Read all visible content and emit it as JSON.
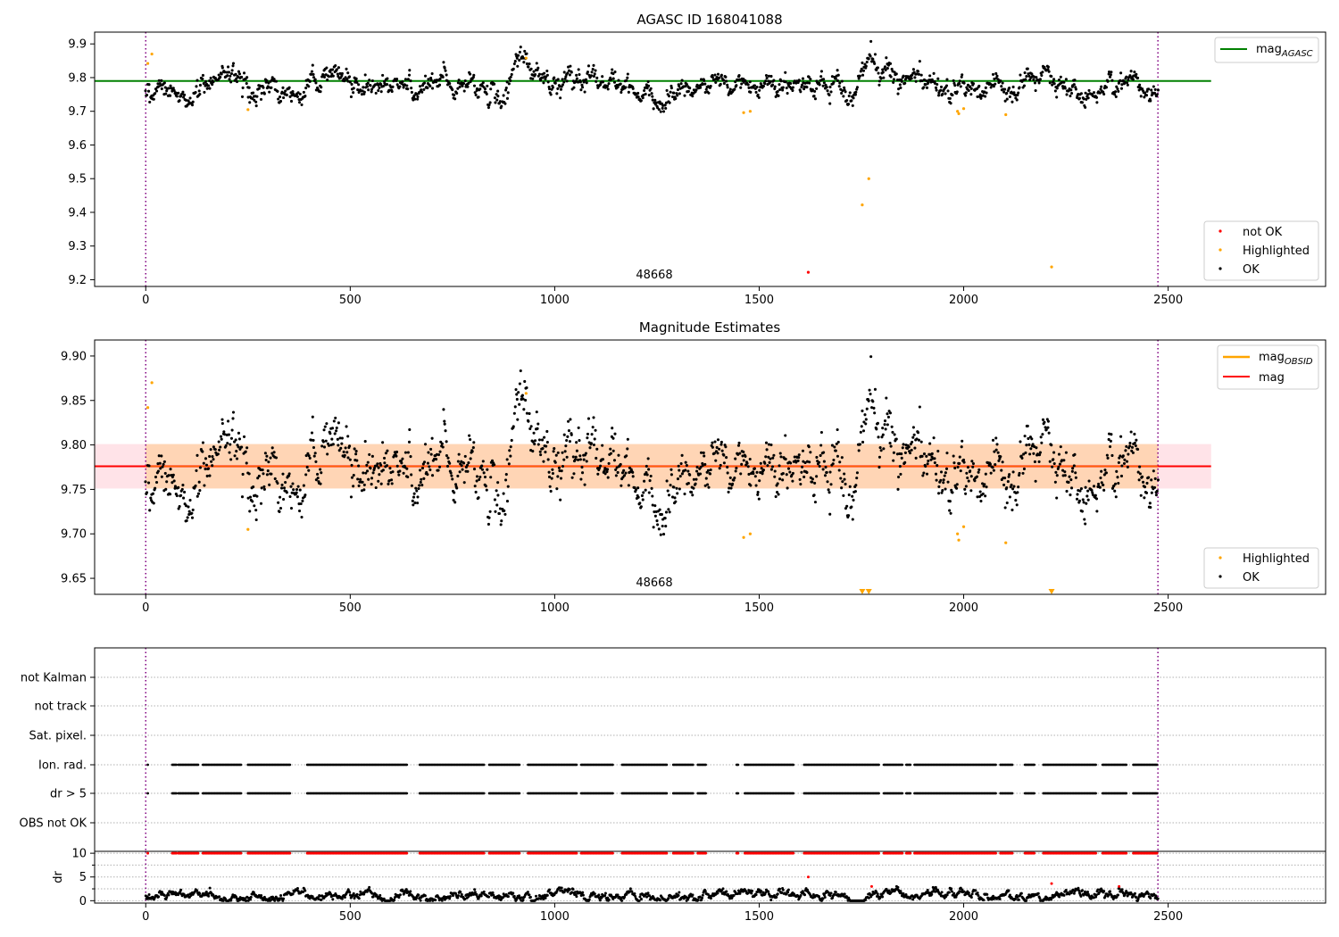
{
  "chart_data": [
    {
      "type": "scatter",
      "title": "AGASC ID 168041088",
      "xlim": [
        -125,
        2885
      ],
      "ylim": [
        9.18,
        9.935
      ],
      "xticks": [
        0,
        500,
        1000,
        1500,
        2000,
        2500
      ],
      "yticks": [
        9.2,
        9.3,
        9.4,
        9.5,
        9.6,
        9.7,
        9.8,
        9.9
      ],
      "ytick_labels": [
        "9.2",
        "9.3",
        "9.4",
        "9.5",
        "9.6",
        "9.7",
        "9.8",
        "9.9"
      ],
      "vlines": [
        0,
        2475
      ],
      "annotation": {
        "text": "48668",
        "x": 1237,
        "y": 9.19
      },
      "reference_line": {
        "name": "mag",
        "name_sub": "AGASC",
        "y": 9.79,
        "x_range": [
          -125,
          2605
        ],
        "color": "#008000"
      },
      "series": [
        {
          "name": "not OK",
          "color": "#ff0000",
          "x": [
            1620
          ],
          "y": [
            9.222
          ]
        },
        {
          "name": "Highlighted",
          "color": "#ffa500",
          "x": [
            5,
            15,
            250,
            930,
            1462,
            1478,
            1752,
            1768,
            1985,
            1988,
            2000,
            2103,
            2215
          ],
          "y": [
            9.842,
            9.87,
            9.705,
            9.858,
            9.696,
            9.7,
            9.422,
            9.5,
            9.7,
            9.693,
            9.708,
            9.69,
            9.238
          ]
        },
        {
          "name": "OK",
          "color": "#000000",
          "generated": true,
          "x_range": [
            0,
            2475
          ],
          "count": 1500,
          "mean": 9.78,
          "scatter": 0.025
        }
      ],
      "legend": {
        "positions": [
          "top-right",
          "bottom-right"
        ],
        "line_entry": {
          "label": "mag",
          "sub": "AGASC"
        },
        "entries": [
          "not OK",
          "Highlighted",
          "OK"
        ]
      }
    },
    {
      "type": "scatter",
      "title": "Magnitude Estimates",
      "xlim": [
        -125,
        2885
      ],
      "ylim": [
        9.632,
        9.918
      ],
      "xticks": [
        0,
        500,
        1000,
        1500,
        2000,
        2500
      ],
      "yticks": [
        9.65,
        9.7,
        9.75,
        9.8,
        9.85,
        9.9
      ],
      "ytick_labels": [
        "9.65",
        "9.70",
        "9.75",
        "9.80",
        "9.85",
        "9.90"
      ],
      "vlines": [
        0,
        2475
      ],
      "annotation": {
        "text": "48668",
        "x": 1237,
        "y": 9.641
      },
      "mag_line": {
        "name": "mag",
        "y": 9.776,
        "x_range": [
          -125,
          2605
        ],
        "color": "#ff0000"
      },
      "mag_band": {
        "y_range": [
          9.751,
          9.801
        ],
        "x_range": [
          -125,
          2605
        ],
        "color": "#ffc0cb"
      },
      "obsid_band": {
        "name": "mag",
        "name_sub": "OBSID",
        "y_range": [
          9.751,
          9.801
        ],
        "x_range": [
          0,
          2475
        ],
        "color": "#ffa500"
      },
      "series": [
        {
          "name": "Highlighted",
          "color": "#ffa500",
          "x": [
            5,
            15,
            250,
            930,
            1462,
            1478,
            1985,
            1988,
            2000,
            2103
          ],
          "y": [
            9.842,
            9.87,
            9.705,
            9.858,
            9.696,
            9.7,
            9.7,
            9.693,
            9.708,
            9.69
          ]
        },
        {
          "name": "OK",
          "color": "#000000",
          "generated": true,
          "x_range": [
            0,
            2475
          ],
          "count": 1500,
          "mean": 9.777,
          "scatter": 0.024
        }
      ],
      "offscale_markers": {
        "color": "#ffa500",
        "x": [
          1752,
          1768,
          2215
        ],
        "y": 9.635
      },
      "legend": {
        "positions": [
          "top-right",
          "bottom-right"
        ],
        "line_entries": [
          {
            "label": "mag",
            "sub": "OBSID",
            "color": "#ffa500"
          },
          {
            "label": "mag",
            "sub": "",
            "color": "#ff0000"
          }
        ],
        "entries": [
          "Highlighted",
          "OK"
        ]
      }
    },
    {
      "type": "scatter",
      "title": "",
      "xlim": [
        -125,
        2885
      ],
      "xticks": [
        0,
        500,
        1000,
        1500,
        2000,
        2500
      ],
      "vlines": [
        0,
        2475
      ],
      "flags": [
        "not Kalman",
        "not track",
        "Sat. pixel.",
        "Ion. rad.",
        "dr > 5",
        "OBS not OK"
      ],
      "flag_series": [
        {
          "flag": "Ion. rad.",
          "color": "#000000",
          "points": [
            5
          ],
          "segments": [
            [
              65,
              75
            ],
            [
              80,
              130
            ],
            [
              140,
              235
            ],
            [
              250,
              355
            ],
            [
              395,
              640
            ],
            [
              670,
              830
            ],
            [
              840,
              915
            ],
            [
              935,
              1055
            ],
            [
              1065,
              1145
            ],
            [
              1165,
              1275
            ],
            [
              1290,
              1340
            ],
            [
              1350,
              1370
            ],
            [
              1445,
              1450
            ],
            [
              1465,
              1585
            ],
            [
              1610,
              1795
            ],
            [
              1805,
              1850
            ],
            [
              1860,
              1870
            ],
            [
              1880,
              2080
            ],
            [
              2090,
              2120
            ],
            [
              2150,
              2175
            ],
            [
              2195,
              2325
            ],
            [
              2340,
              2400
            ],
            [
              2415,
              2475
            ]
          ]
        },
        {
          "flag": "dr > 5",
          "color": "#000000",
          "points": [
            5
          ],
          "segments": [
            [
              65,
              75
            ],
            [
              80,
              130
            ],
            [
              140,
              235
            ],
            [
              250,
              355
            ],
            [
              395,
              640
            ],
            [
              670,
              830
            ],
            [
              840,
              915
            ],
            [
              935,
              1055
            ],
            [
              1065,
              1145
            ],
            [
              1165,
              1275
            ],
            [
              1290,
              1340
            ],
            [
              1350,
              1370
            ],
            [
              1445,
              1450
            ],
            [
              1465,
              1585
            ],
            [
              1610,
              1795
            ],
            [
              1805,
              1850
            ],
            [
              1860,
              1870
            ],
            [
              1880,
              2080
            ],
            [
              2090,
              2120
            ],
            [
              2150,
              2175
            ],
            [
              2195,
              2325
            ],
            [
              2340,
              2400
            ],
            [
              2415,
              2475
            ]
          ]
        }
      ],
      "dr_panel": {
        "ylabel": "dr",
        "ylim": [
          -0.5,
          10.4
        ],
        "yticks": [
          0,
          5,
          10
        ],
        "ytick_labels": [
          "0",
          "5",
          "10"
        ],
        "minor_yticks": [
          2.5,
          7.5
        ],
        "capped": {
          "color": "#ff0000",
          "y": 10,
          "points": [
            5
          ],
          "segments": [
            [
              65,
              75
            ],
            [
              80,
              130
            ],
            [
              140,
              235
            ],
            [
              250,
              355
            ],
            [
              395,
              640
            ],
            [
              670,
              830
            ],
            [
              840,
              915
            ],
            [
              935,
              1055
            ],
            [
              1065,
              1145
            ],
            [
              1165,
              1275
            ],
            [
              1290,
              1340
            ],
            [
              1350,
              1370
            ],
            [
              1445,
              1450
            ],
            [
              1465,
              1585
            ],
            [
              1610,
              1795
            ],
            [
              1805,
              1850
            ],
            [
              1860,
              1870
            ],
            [
              1880,
              2080
            ],
            [
              2090,
              2120
            ],
            [
              2150,
              2175
            ],
            [
              2195,
              2325
            ],
            [
              2340,
              2400
            ],
            [
              2415,
              2475
            ]
          ]
        },
        "red_points": {
          "color": "#ff0000",
          "x": [
            1620,
            1775,
            2215,
            2380
          ],
          "y": [
            5.0,
            3.0,
            3.6,
            3.0
          ]
        },
        "black": {
          "color": "#000000",
          "generated": true,
          "x_range": [
            0,
            2475
          ],
          "count": 1500,
          "mean": 1.1,
          "max": 3
        }
      }
    }
  ]
}
